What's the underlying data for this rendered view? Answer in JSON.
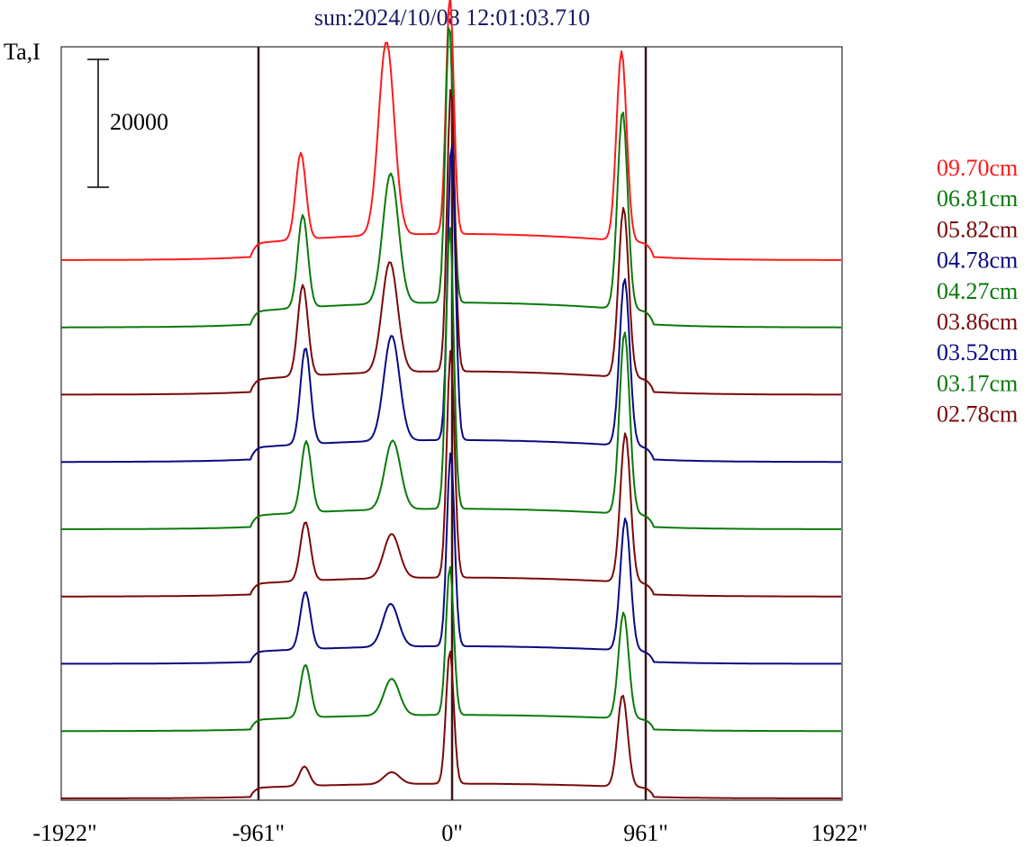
{
  "chart_data": {
    "type": "line",
    "title": "sun:2024/10/08 12:01:03.710",
    "ylabel": "Ta,I",
    "xlabel": "",
    "scale_bar_label": "20000",
    "scale_bar_value": 20000,
    "x_ticks": [
      {
        "value": -1922,
        "label": "-1922\""
      },
      {
        "value": -961,
        "label": "-961\""
      },
      {
        "value": 0,
        "label": "0\""
      },
      {
        "value": 961,
        "label": "961\""
      },
      {
        "value": 1922,
        "label": "1922\""
      }
    ],
    "xlim": [
      -1922,
      1922
    ],
    "vertical_reference_lines": [
      -961,
      0,
      961
    ],
    "grid": false,
    "legend_position": "right",
    "series": [
      {
        "name": "09.70cm",
        "color": "#ff1a1a",
        "peaks": [
          [
            -751,
            16800
          ],
          [
            -326,
            34200
          ],
          [
            -11,
            41500
          ],
          [
            841,
            32700
          ]
        ]
      },
      {
        "name": "06.81cm",
        "color": "#0a7a0a",
        "peaks": [
          [
            -741,
            17600
          ],
          [
            -305,
            24100
          ],
          [
            -14,
            47700
          ],
          [
            846,
            33900
          ]
        ]
      },
      {
        "name": "05.82cm",
        "color": "#7a0a0a",
        "peaks": [
          [
            -741,
            17200
          ],
          [
            -309,
            20800
          ],
          [
            -6,
            48200
          ],
          [
            851,
            29300
          ]
        ]
      },
      {
        "name": "04.78cm",
        "color": "#0a0a82",
        "peaks": [
          [
            -728,
            17900
          ],
          [
            -300,
            19800
          ],
          [
            -3,
            50000
          ],
          [
            856,
            28700
          ]
        ]
      },
      {
        "name": "04.27cm",
        "color": "#0a7a0a",
        "peaks": [
          [
            -724,
            13800
          ],
          [
            -295,
            13900
          ],
          [
            -11,
            47400
          ],
          [
            856,
            30900
          ]
        ]
      },
      {
        "name": "03.86cm",
        "color": "#7a0a0a",
        "peaks": [
          [
            -728,
            11700
          ],
          [
            -300,
            9800
          ],
          [
            -7,
            38600
          ],
          [
            860,
            25600
          ]
        ]
      },
      {
        "name": "03.52cm",
        "color": "#0a0a82",
        "peaks": [
          [
            -728,
            11300
          ],
          [
            -305,
            9400
          ],
          [
            -7,
            33100
          ],
          [
            860,
            22800
          ]
        ]
      },
      {
        "name": "03.17cm",
        "color": "#0a7a0a",
        "peaks": [
          [
            -728,
            10400
          ],
          [
            -300,
            8200
          ],
          [
            -11,
            25800
          ],
          [
            851,
            18600
          ]
        ]
      },
      {
        "name": "02.78cm",
        "color": "#7a0a0a",
        "peaks": [
          [
            -733,
            5000
          ],
          [
            -300,
            4100
          ],
          [
            -11,
            23100
          ],
          [
            846,
            16200
          ]
        ]
      }
    ]
  }
}
